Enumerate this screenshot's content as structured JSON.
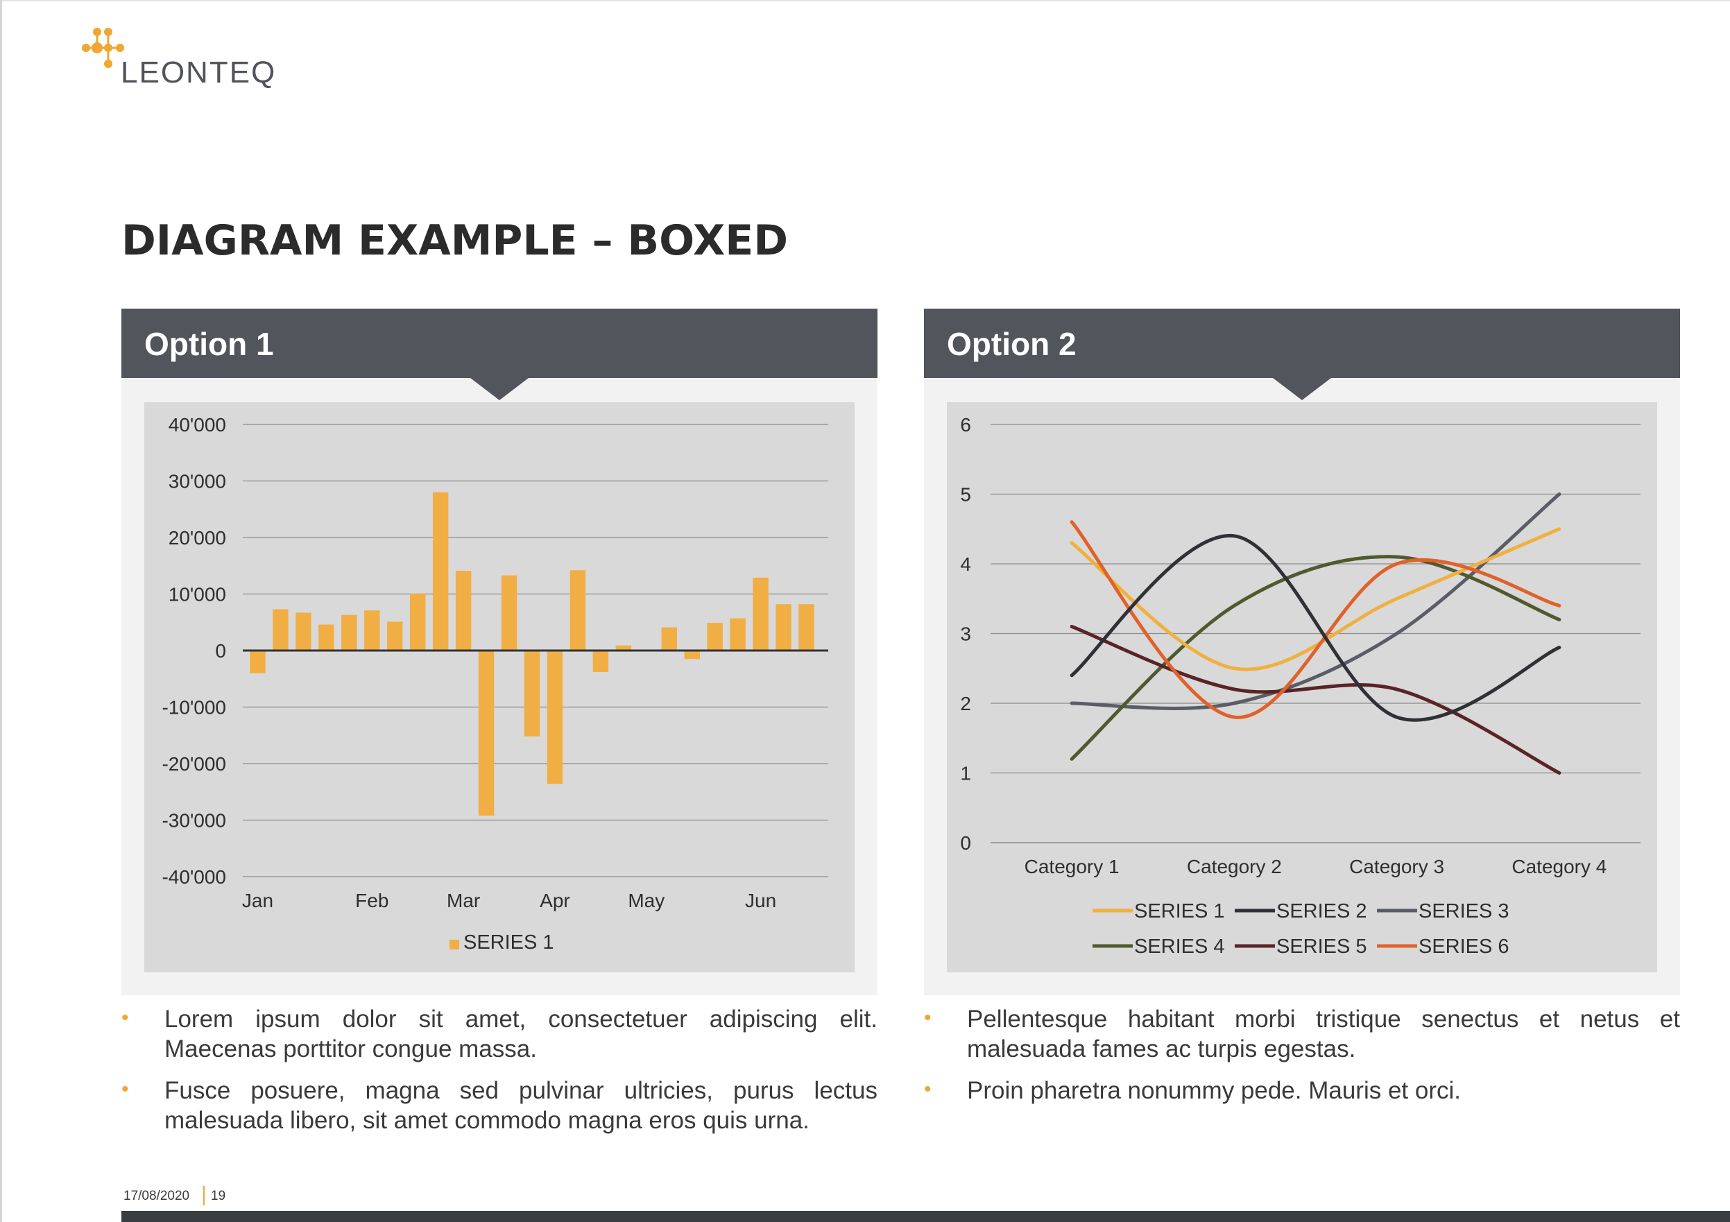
{
  "brand": {
    "name": "LEONTEQ",
    "accent": "#f0a630",
    "dark": "#52555c"
  },
  "page": {
    "title": "DIAGRAM EXAMPLE – BOXED",
    "date": "17/08/2020",
    "page_number": "19"
  },
  "panels": [
    {
      "title": "Option 1",
      "bullets": [
        "Lorem ipsum dolor sit amet, consectetuer adipiscing elit. Maecenas porttitor congue massa.",
        "Fusce posuere, magna sed pulvinar ultricies, purus lectus malesuada libero, sit amet commodo magna eros quis urna."
      ]
    },
    {
      "title": "Option 2",
      "bullets": [
        "Pellentesque habitant morbi tristique senectus et netus et malesuada fames ac turpis egestas.",
        "Proin pharetra nonummy pede. Mauris et orci."
      ]
    }
  ],
  "chart_data": [
    {
      "type": "bar",
      "ylim": [
        -40000,
        40000
      ],
      "yticks": [
        40000,
        30000,
        20000,
        10000,
        0,
        -10000,
        -20000,
        -30000,
        -40000
      ],
      "ytick_labels": [
        "40'000",
        "30'000",
        "20'000",
        "10'000",
        "0",
        "-10'000",
        "-20'000",
        "-30'000",
        "-40'000"
      ],
      "month_labels": [
        "Jan",
        "Feb",
        "Mar",
        "Apr",
        "May",
        "Jun"
      ],
      "month_label_bar_index": [
        0,
        5,
        9,
        13,
        17,
        22
      ],
      "grid": true,
      "legend_position": "bottom",
      "series": [
        {
          "name": "SERIES 1",
          "color": "#f0ae45",
          "values": [
            -4000,
            7300,
            6700,
            4600,
            6300,
            7100,
            5100,
            10100,
            28000,
            14100,
            -29200,
            13300,
            -15200,
            -23600,
            14200,
            -3800,
            900,
            0,
            4100,
            -1500,
            4900,
            5700,
            12900,
            8200,
            8200
          ]
        }
      ]
    },
    {
      "type": "line",
      "categories": [
        "Category 1",
        "Category 2",
        "Category 3",
        "Category 4"
      ],
      "ylim": [
        0,
        6
      ],
      "yticks": [
        0,
        1,
        2,
        3,
        4,
        5,
        6
      ],
      "grid": true,
      "legend_position": "bottom",
      "series": [
        {
          "name": "SERIES 1",
          "color": "#f0b040",
          "values": [
            4.3,
            2.5,
            3.5,
            4.5
          ]
        },
        {
          "name": "SERIES 2",
          "color": "#2f3136",
          "values": [
            2.4,
            4.4,
            1.8,
            2.8
          ]
        },
        {
          "name": "SERIES 3",
          "color": "#5a5d66",
          "values": [
            2.0,
            2.0,
            3.0,
            5.0
          ]
        },
        {
          "name": "SERIES 4",
          "color": "#4f5a2e",
          "values": [
            1.2,
            3.4,
            4.1,
            3.2
          ]
        },
        {
          "name": "SERIES 5",
          "color": "#5a2426",
          "values": [
            3.1,
            2.2,
            2.2,
            1.0
          ]
        },
        {
          "name": "SERIES 6",
          "color": "#e0622a",
          "values": [
            4.6,
            1.8,
            4.0,
            3.4
          ]
        }
      ]
    }
  ]
}
